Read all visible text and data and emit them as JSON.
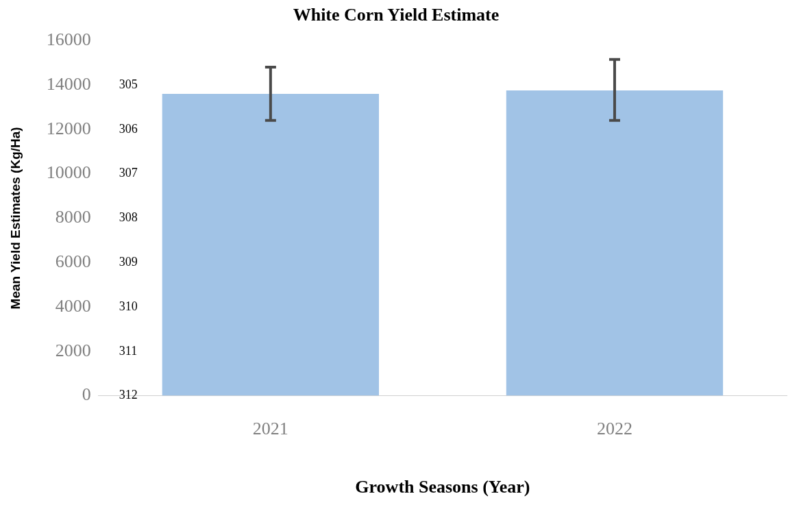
{
  "chart_data": {
    "type": "bar",
    "title": "White Corn Yield Estimate",
    "xlabel": "Growth Seasons (Year)",
    "ylabel": "Mean Yield Estimates (Kg/Ha)",
    "categories": [
      "2021",
      "2022"
    ],
    "values": [
      13600,
      13750
    ],
    "errors": [
      1200,
      [
        12400,
        15150
      ]
    ],
    "color": "#a1c3e6",
    "ylim": [
      0,
      16000
    ],
    "yticks": [
      0,
      2000,
      4000,
      6000,
      8000,
      10000,
      12000,
      14000,
      16000
    ],
    "grid": false,
    "legend": false,
    "annotations": [
      "305",
      "306",
      "307",
      "308",
      "309",
      "310",
      "311",
      "312"
    ]
  }
}
